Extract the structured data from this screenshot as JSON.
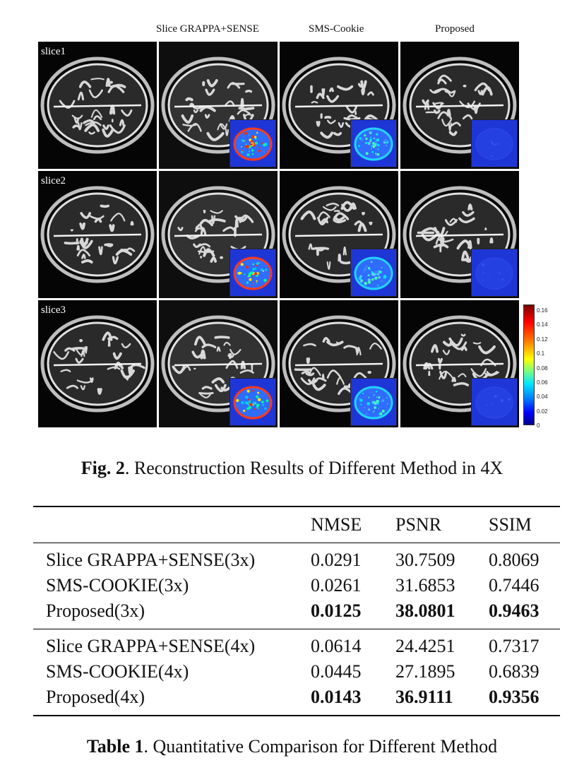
{
  "figure": {
    "column_headers": [
      "Slice  GRAPPA+SENSE",
      "SMS-Cookie",
      "Proposed"
    ],
    "row_labels": [
      "slice1",
      "slice2",
      "slice3"
    ],
    "colorbar_ticks": [
      "0.16",
      "0.14",
      "0.12",
      "0.1",
      "0.08",
      "0.06",
      "0.04",
      "0.02",
      "0"
    ],
    "colors": {
      "colorbar_top": "#7a0000",
      "colorbar_bottom": "#00008a",
      "error_map_background": "#1f36d6"
    }
  },
  "fig_caption": {
    "label": "Fig. 2",
    "text": ". Reconstruction Results of Different Method in 4X"
  },
  "table": {
    "headers": [
      "NMSE",
      "PSNR",
      "SSIM"
    ],
    "group1": [
      {
        "method": "Slice GRAPPA+SENSE(3x)",
        "nmse": "0.0291",
        "psnr": "30.7509",
        "ssim": "0.8069"
      },
      {
        "method": "SMS-COOKIE(3x)",
        "nmse": "0.0261",
        "psnr": "31.6853",
        "ssim": "0.7446"
      },
      {
        "method": "Proposed(3x)",
        "nmse": "0.0125",
        "psnr": "38.0801",
        "ssim": "0.9463"
      }
    ],
    "group2": [
      {
        "method": "Slice GRAPPA+SENSE(4x)",
        "nmse": "0.0614",
        "psnr": "24.4251",
        "ssim": "0.7317"
      },
      {
        "method": "SMS-COOKIE(4x)",
        "nmse": "0.0445",
        "psnr": "27.1895",
        "ssim": "0.6839"
      },
      {
        "method": "Proposed(4x)",
        "nmse": "0.0143",
        "psnr": "36.9111",
        "ssim": "0.9356"
      }
    ]
  },
  "table_caption": {
    "label": "Table 1",
    "text": ". Quantitative Comparison for Different Method"
  }
}
